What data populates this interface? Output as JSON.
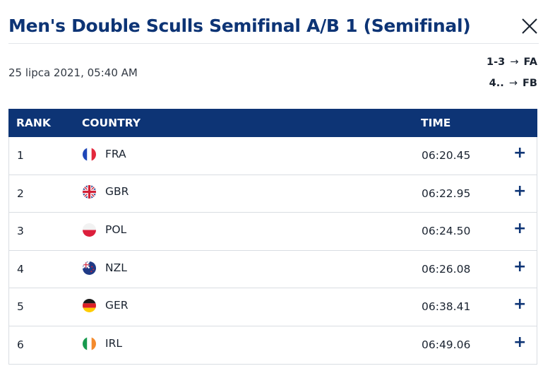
{
  "title": "Men's Double Sculls Semifinal A/B 1 (Semifinal)",
  "date": "25 lipca 2021, 05:40 AM",
  "progressions": [
    {
      "range": "1-3",
      "arrow": "→",
      "target": "FA"
    },
    {
      "range": "4..",
      "arrow": "→",
      "target": "FB"
    }
  ],
  "table": {
    "headers": {
      "rank": "RANK",
      "country": "COUNTRY",
      "time": "TIME"
    },
    "rows": [
      {
        "rank": "1",
        "country": "FRA",
        "time": "06:20.45",
        "flag": "fra-flag-icon",
        "expand": "+"
      },
      {
        "rank": "2",
        "country": "GBR",
        "time": "06:22.95",
        "flag": "gbr-flag-icon",
        "expand": "+"
      },
      {
        "rank": "3",
        "country": "POL",
        "time": "06:24.50",
        "flag": "pol-flag-icon",
        "expand": "+"
      },
      {
        "rank": "4",
        "country": "NZL",
        "time": "06:26.08",
        "flag": "nzl-flag-icon",
        "expand": "+"
      },
      {
        "rank": "5",
        "country": "GER",
        "time": "06:38.41",
        "flag": "ger-flag-icon",
        "expand": "+"
      },
      {
        "rank": "6",
        "country": "IRL",
        "time": "06:49.06",
        "flag": "irl-flag-icon",
        "expand": "+"
      }
    ]
  },
  "colors": {
    "brand": "#0d3475",
    "header_text": "#ffffff",
    "border": "#d9dde2"
  },
  "icons": {
    "close": "close-icon",
    "expand": "plus-icon"
  }
}
